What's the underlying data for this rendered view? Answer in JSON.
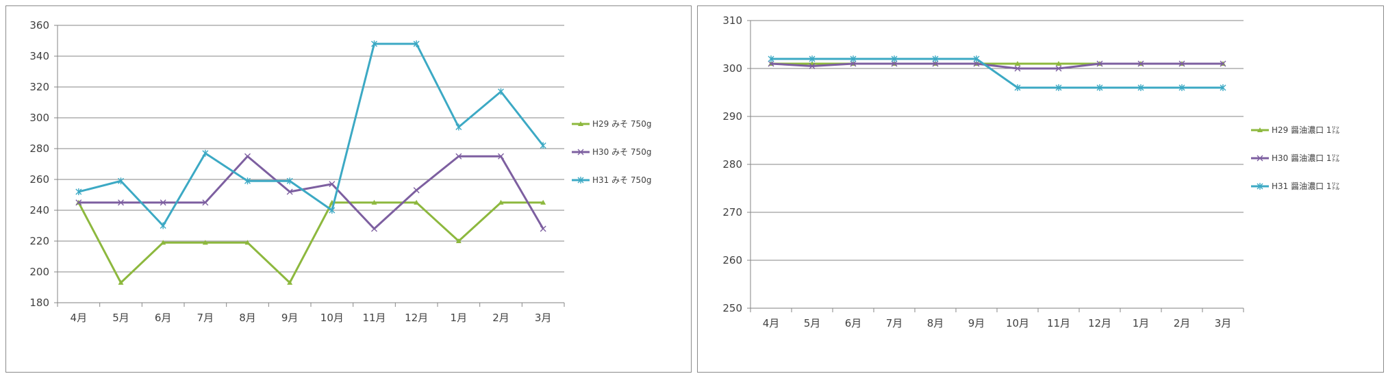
{
  "chart_data": [
    {
      "type": "line",
      "categories": [
        "4月",
        "5月",
        "6月",
        "7月",
        "8月",
        "9月",
        "10月",
        "11月",
        "12月",
        "1月",
        "2月",
        "3月"
      ],
      "ylim": [
        180,
        360
      ],
      "yticks": [
        180,
        200,
        220,
        240,
        260,
        280,
        300,
        320,
        340,
        360
      ],
      "grid": true,
      "legend": "right",
      "series": [
        {
          "name": "H29 みそ 750g",
          "color": "#8DB83E",
          "marker": "triangle",
          "values": [
            245,
            193,
            219,
            219,
            219,
            193,
            245,
            245,
            245,
            220,
            245,
            245
          ]
        },
        {
          "name": "H30 みそ 750g",
          "color": "#7D5FA0",
          "marker": "x",
          "values": [
            245,
            245,
            245,
            245,
            275,
            252,
            257,
            228,
            253,
            275,
            275,
            228
          ]
        },
        {
          "name": "H31 みそ 750g",
          "color": "#3CA9C4",
          "marker": "star",
          "values": [
            252,
            259,
            230,
            277,
            259,
            259,
            240,
            348,
            348,
            294,
            317,
            282
          ]
        }
      ]
    },
    {
      "type": "line",
      "categories": [
        "4月",
        "5月",
        "6月",
        "7月",
        "8月",
        "9月",
        "10月",
        "11月",
        "12月",
        "1月",
        "2月",
        "3月"
      ],
      "ylim": [
        250,
        310
      ],
      "yticks": [
        250,
        260,
        270,
        280,
        290,
        300,
        310
      ],
      "grid": true,
      "legend": "right",
      "series": [
        {
          "name": "H29 醤油濃口 1㍑",
          "color": "#8DB83E",
          "marker": "triangle",
          "values": [
            301,
            301,
            301,
            301,
            301,
            301,
            301,
            301,
            301,
            301,
            301,
            301
          ]
        },
        {
          "name": "H30 醤油濃口 1㍑",
          "color": "#7D5FA0",
          "marker": "x",
          "values": [
            301,
            300.5,
            301,
            301,
            301,
            301,
            300,
            300,
            301,
            301,
            301,
            301
          ]
        },
        {
          "name": "H31 醤油濃口 1㍑",
          "color": "#3CA9C4",
          "marker": "star",
          "values": [
            302,
            302,
            302,
            302,
            302,
            302,
            296,
            296,
            296,
            296,
            296,
            296
          ]
        }
      ]
    }
  ]
}
